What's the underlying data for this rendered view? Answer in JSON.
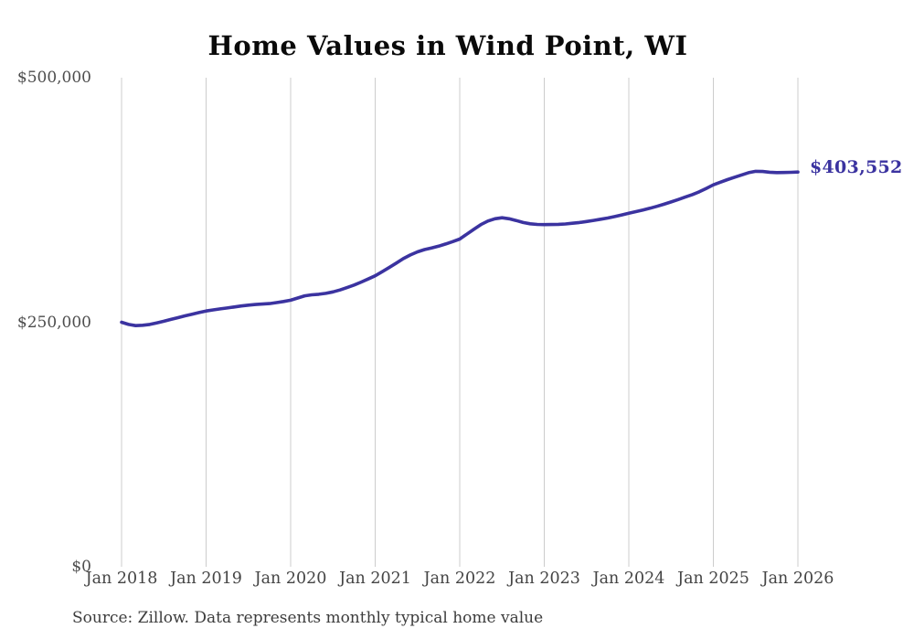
{
  "title": "Home Values in Wind Point, WI",
  "source_note": "Source: Zillow. Data represents monthly typical home value",
  "end_value_label": "$403,552",
  "colors": {
    "line": "#3b33a0",
    "gridline": "#cccccc",
    "title_text": "#0a0a0a",
    "axis_text": "#4a4a4a",
    "end_label_text": "#3b33a0"
  },
  "chart_data": {
    "type": "line",
    "title": "Home Values in Wind Point, WI",
    "xlabel": "",
    "ylabel": "",
    "ylim": [
      0,
      500000
    ],
    "grid": "vertical-only",
    "legend": "none",
    "x_unit": "monthly, Jan 2018 through Jan 2026",
    "x_tick_labels": [
      "Jan 2018",
      "Jan 2019",
      "Jan 2020",
      "Jan 2021",
      "Jan 2022",
      "Jan 2023",
      "Jan 2024",
      "Jan 2025",
      "Jan 2026"
    ],
    "y_ticks": [
      {
        "label": "$500,000",
        "value": 500000
      },
      {
        "label": "$250,000",
        "value": 250000
      },
      {
        "label": "$0",
        "value": 0
      }
    ],
    "annotation": {
      "text": "$403,552",
      "attached_to": "last-point"
    },
    "series": [
      {
        "name": "Typical home value",
        "color": "#3b33a0",
        "values": [
          250000,
          247800,
          246500,
          246900,
          247800,
          249300,
          251000,
          252900,
          254700,
          256500,
          258200,
          259900,
          261500,
          262600,
          263600,
          264600,
          265600,
          266600,
          267500,
          268100,
          268600,
          269100,
          270100,
          271200,
          272500,
          274800,
          277000,
          278000,
          278600,
          279500,
          281000,
          283000,
          285400,
          288000,
          291000,
          294200,
          297500,
          301700,
          306000,
          310500,
          315000,
          318800,
          322000,
          324300,
          326000,
          327800,
          330000,
          332400,
          335000,
          340000,
          345000,
          349800,
          353500,
          355800,
          356800,
          355800,
          354000,
          352000,
          350700,
          350000,
          349800,
          349900,
          350100,
          350500,
          351200,
          352000,
          353000,
          354100,
          355300,
          356500,
          358000,
          359700,
          361500,
          363100,
          364800,
          366500,
          368500,
          370700,
          373000,
          375400,
          377900,
          380500,
          383400,
          386800,
          390500,
          393200,
          395800,
          398200,
          400600,
          402900,
          404300,
          404100,
          403400,
          403000,
          403100,
          403300,
          403552
        ]
      }
    ]
  }
}
